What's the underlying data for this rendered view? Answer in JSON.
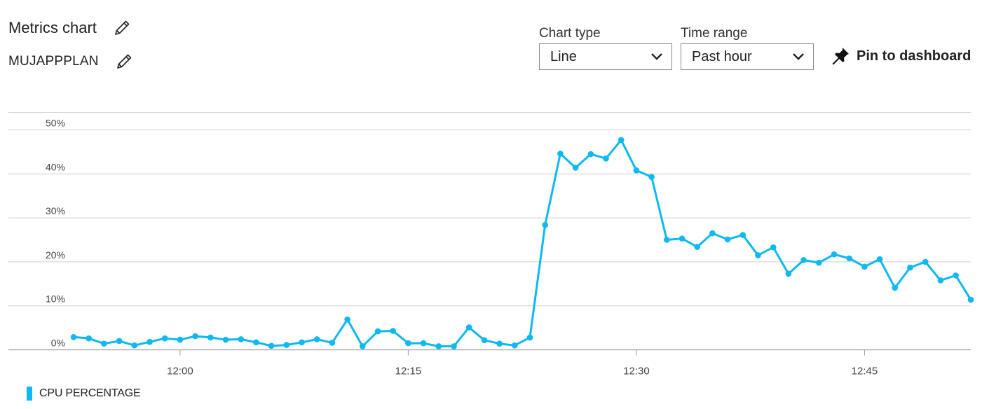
{
  "header": {
    "title": "Metrics chart",
    "subtitle": "MUJAPPPLAN",
    "title_edit_icon": "pencil-icon",
    "subtitle_edit_icon": "pencil-icon"
  },
  "controls": {
    "chart_type": {
      "label": "Chart type",
      "value": "Line"
    },
    "time_range": {
      "label": "Time range",
      "value": "Past hour"
    },
    "pin": {
      "label": "Pin to dashboard",
      "icon": "pin-icon"
    }
  },
  "legend": {
    "label": "CPU PERCENTAGE",
    "color": "#0db9f0"
  },
  "chart_data": {
    "type": "line",
    "title": "",
    "xlabel": "",
    "ylabel": "",
    "x_unit": "minutes (clock time)",
    "x_start": "11:53",
    "x_step_minutes": 1,
    "x_ticks": [
      "12:00",
      "12:15",
      "12:30",
      "12:45"
    ],
    "y_ticks": [
      "0%",
      "10%",
      "20%",
      "30%",
      "40%",
      "50%"
    ],
    "ylim": [
      0,
      55
    ],
    "grid": true,
    "color": "#0db9f0",
    "series": [
      {
        "values": [
          2.9,
          2.6,
          1.4,
          2.0,
          1.0,
          1.8,
          2.6,
          2.3,
          3.1,
          2.8,
          2.3,
          2.4,
          1.7,
          0.9,
          1.1,
          1.7,
          2.4,
          1.6,
          6.9,
          0.8,
          4.2,
          4.3,
          1.5,
          1.5,
          0.8,
          0.8,
          5.1,
          2.2,
          1.4,
          1.0,
          2.8,
          28.4,
          44.6,
          41.4,
          44.5,
          43.5,
          47.7,
          40.8,
          39.3,
          25.0,
          25.3,
          23.4,
          26.5,
          25.1,
          26.1,
          21.5,
          23.3,
          17.3,
          20.4,
          19.8,
          21.7,
          20.8,
          18.9,
          20.6,
          14.1,
          18.7,
          20.0,
          15.8,
          16.9,
          11.4
        ]
      }
    ]
  }
}
